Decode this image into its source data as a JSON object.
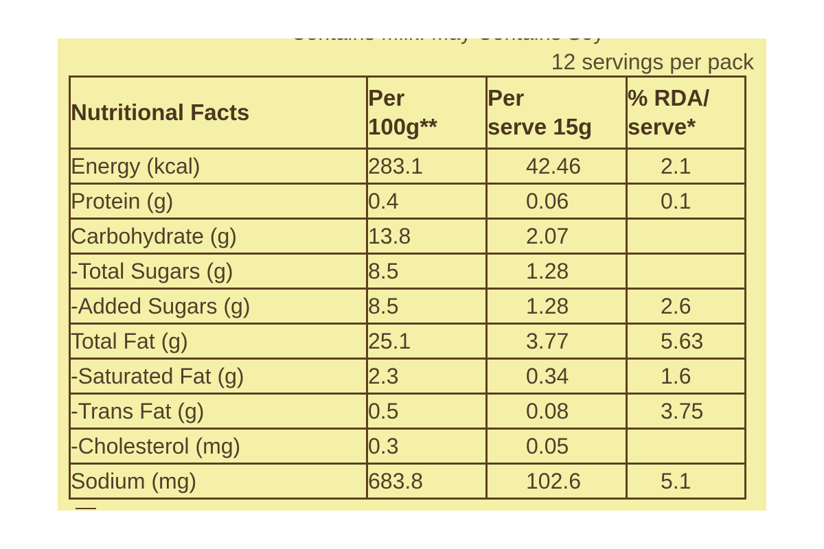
{
  "label": {
    "top_line": "Contains Milk. May Contains Soy",
    "servings": "12 servings per pack",
    "headers": {
      "nutrient": "Nutritional Facts",
      "per_100g": [
        "Per",
        "100g**"
      ],
      "per_serve": [
        "Per",
        "serve 15g"
      ],
      "rda": [
        "% RDA/",
        "serve*"
      ]
    },
    "rows": [
      {
        "nutrient": "Energy (kcal)",
        "per_100g": "283.1",
        "per_serve": "42.46",
        "rda": "2.1"
      },
      {
        "nutrient": "Protein (g)",
        "per_100g": "0.4",
        "per_serve": "0.06",
        "rda": "0.1"
      },
      {
        "nutrient": "Carbohydrate (g)",
        "per_100g": "13.8",
        "per_serve": "2.07",
        "rda": ""
      },
      {
        "nutrient": "-Total Sugars (g)",
        "per_100g": "8.5",
        "per_serve": "1.28",
        "rda": ""
      },
      {
        "nutrient": "-Added Sugars (g)",
        "per_100g": "8.5",
        "per_serve": "1.28",
        "rda": "2.6"
      },
      {
        "nutrient": "Total Fat (g)",
        "per_100g": "25.1",
        "per_serve": "3.77",
        "rda": "5.63"
      },
      {
        "nutrient": "-Saturated Fat (g)",
        "per_100g": "2.3",
        "per_serve": "0.34",
        "rda": "1.6"
      },
      {
        "nutrient": "-Trans Fat (g)",
        "per_100g": "0.5",
        "per_serve": "0.08",
        "rda": "3.75"
      },
      {
        "nutrient": "-Cholesterol (mg)",
        "per_100g": "0.3",
        "per_serve": "0.05",
        "rda": ""
      },
      {
        "nutrient": "Sodium (mg)",
        "per_100g": "683.8",
        "per_serve": "102.6",
        "rda": "5.1"
      }
    ]
  },
  "colors": {
    "label_background": "#f5f0a8",
    "border": "#5a4020",
    "text": "#4f3f2a"
  }
}
